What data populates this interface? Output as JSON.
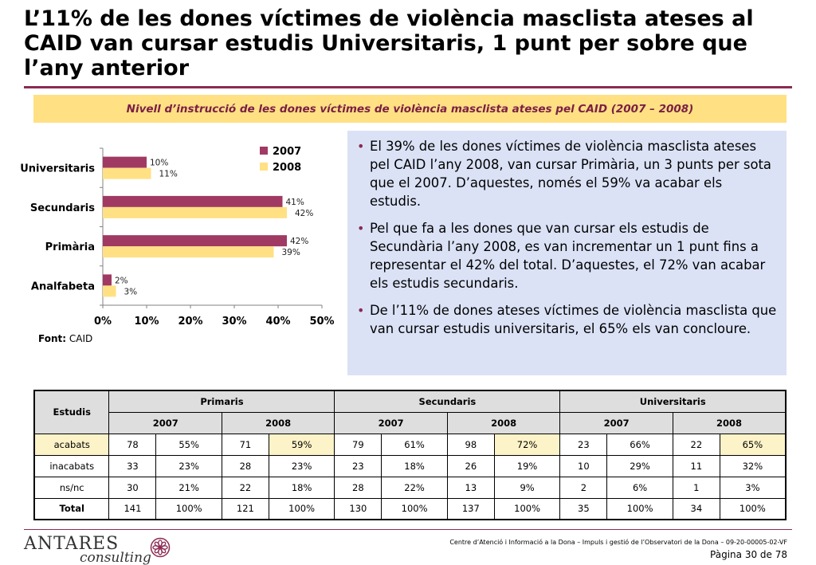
{
  "title": "L’11% de les dones víctimes de violència masclista ateses al CAID van cursar estudis Universitaris, 1 punt per sobre que l’any anterior",
  "subtitle": "Nivell d’instrucció de les dones víctimes de violència masclista ateses pel CAID (2007 – 2008)",
  "colors": {
    "accent": "#8b2a52",
    "series_2007": "#a03a62",
    "series_2008": "#ffe083",
    "band": "#ffe083",
    "panel": "#dbe2f6"
  },
  "chart_data": {
    "type": "bar",
    "orientation": "horizontal",
    "categories": [
      "Universitaris",
      "Secundaris",
      "Primària",
      "Analfabeta"
    ],
    "series": [
      {
        "name": "2007",
        "values": [
          10,
          41,
          42,
          2
        ],
        "labels": [
          "10%",
          "41%",
          "42%",
          "2%"
        ]
      },
      {
        "name": "2008",
        "values": [
          11,
          42,
          39,
          3
        ],
        "labels": [
          "11%",
          "42%",
          "39%",
          "3%"
        ]
      }
    ],
    "xlim": [
      0,
      50
    ],
    "xticks": [
      "0%",
      "10%",
      "20%",
      "30%",
      "40%",
      "50%"
    ],
    "legend": "top-right",
    "grid": false
  },
  "source": {
    "label": "Font:",
    "value": "CAID"
  },
  "bullets": [
    "El 39% de les dones víctimes de violència masclista ateses pel CAID l’any 2008, van cursar Primària, un 3 punts per sota que el 2007. D’aquestes, només el 59% va acabar els estudis.",
    "Pel que fa a les dones que van cursar els estudis de Secundària l’any 2008, es van incrementar un 1 punt fins a representar el 42% del total. D’aquestes, el 72% van acabar els estudis secundaris.",
    "De l’11% de dones ateses víctimes de violència masclista que van cursar estudis universitaris, el 65% els van concloure."
  ],
  "table": {
    "corner": "Estudis",
    "groups": [
      "Primaris",
      "Secundaris",
      "Universitaris"
    ],
    "years": [
      "2007",
      "2008",
      "2007",
      "2008",
      "2007",
      "2008"
    ],
    "rows": [
      {
        "label": "acabats",
        "cells": [
          "78",
          "55%",
          "71",
          "59%",
          "79",
          "61%",
          "98",
          "72%",
          "23",
          "66%",
          "22",
          "65%"
        ]
      },
      {
        "label": "inacabats",
        "cells": [
          "33",
          "23%",
          "28",
          "23%",
          "23",
          "18%",
          "26",
          "19%",
          "10",
          "29%",
          "11",
          "32%"
        ]
      },
      {
        "label": "ns/nc",
        "cells": [
          "30",
          "21%",
          "22",
          "18%",
          "28",
          "22%",
          "13",
          "9%",
          "2",
          "6%",
          "1",
          "3%"
        ]
      },
      {
        "label": "Total",
        "cells": [
          "141",
          "100%",
          "121",
          "100%",
          "130",
          "100%",
          "137",
          "100%",
          "35",
          "100%",
          "34",
          "100%"
        ]
      }
    ]
  },
  "footer": {
    "logo_main": "ANTARES",
    "logo_sub": "consulting",
    "text": "Centre d’Atenció i Informació a la Dona – Impuls i gestió de l’Observatori de la Dona – 09-20-00005-02-VF",
    "page": "Pàgina 30 de 78"
  }
}
